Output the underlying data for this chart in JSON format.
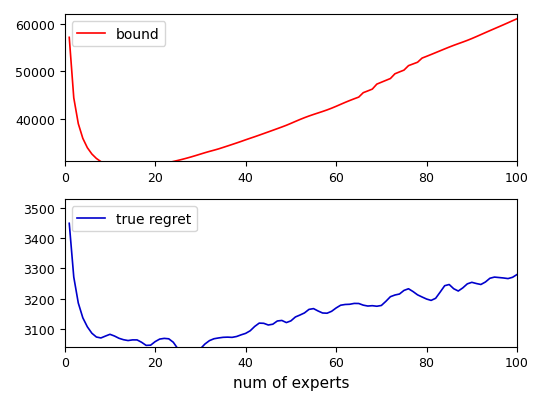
{
  "xlabel": "num of experts",
  "bound_color": "#ff0000",
  "regret_color": "#0000cc",
  "bound_label": "bound",
  "regret_label": "true regret",
  "figsize": [
    5.44,
    4.06
  ],
  "dpi": 100,
  "bound_yticks": [
    40000,
    50000,
    60000
  ],
  "regret_yticks": [
    3100,
    3200,
    3300,
    3400,
    3500
  ],
  "bound_ylim": [
    31000,
    62000
  ],
  "regret_ylim": [
    3040,
    3530
  ]
}
